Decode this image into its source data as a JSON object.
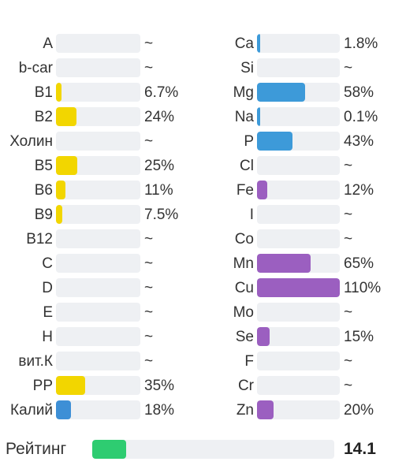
{
  "colors": {
    "track": "#eef0f3",
    "vitamin": "#f2d600",
    "potassium": "#3d8fd6",
    "mineral_blue": "#3d9ad9",
    "mineral_purple": "#9b5fc0",
    "rating": "#2ecc71"
  },
  "vitamins": [
    {
      "label": "A",
      "value_text": "~",
      "percent": 0,
      "color": "#f2d600"
    },
    {
      "label": "b-car",
      "value_text": "~",
      "percent": 0,
      "color": "#f2d600"
    },
    {
      "label": "B1",
      "value_text": "6.7%",
      "percent": 6.7,
      "color": "#f2d600"
    },
    {
      "label": "B2",
      "value_text": "24%",
      "percent": 24,
      "color": "#f2d600"
    },
    {
      "label": "Холин",
      "value_text": "~",
      "percent": 0,
      "color": "#f2d600"
    },
    {
      "label": "B5",
      "value_text": "25%",
      "percent": 25,
      "color": "#f2d600"
    },
    {
      "label": "B6",
      "value_text": "11%",
      "percent": 11,
      "color": "#f2d600"
    },
    {
      "label": "B9",
      "value_text": "7.5%",
      "percent": 7.5,
      "color": "#f2d600"
    },
    {
      "label": "B12",
      "value_text": "~",
      "percent": 0,
      "color": "#f2d600"
    },
    {
      "label": "C",
      "value_text": "~",
      "percent": 0,
      "color": "#f2d600"
    },
    {
      "label": "D",
      "value_text": "~",
      "percent": 0,
      "color": "#f2d600"
    },
    {
      "label": "E",
      "value_text": "~",
      "percent": 0,
      "color": "#f2d600"
    },
    {
      "label": "H",
      "value_text": "~",
      "percent": 0,
      "color": "#f2d600"
    },
    {
      "label": "вит.К",
      "value_text": "~",
      "percent": 0,
      "color": "#f2d600"
    },
    {
      "label": "PP",
      "value_text": "35%",
      "percent": 35,
      "color": "#f2d600"
    },
    {
      "label": "Калий",
      "value_text": "18%",
      "percent": 18,
      "color": "#3d8fd6"
    }
  ],
  "minerals": [
    {
      "label": "Ca",
      "value_text": "1.8%",
      "percent": 1.8,
      "color": "#3d9ad9"
    },
    {
      "label": "Si",
      "value_text": "~",
      "percent": 0,
      "color": "#3d9ad9"
    },
    {
      "label": "Mg",
      "value_text": "58%",
      "percent": 58,
      "color": "#3d9ad9"
    },
    {
      "label": "Na",
      "value_text": "0.1%",
      "percent": 0.1,
      "color": "#3d9ad9"
    },
    {
      "label": "P",
      "value_text": "43%",
      "percent": 43,
      "color": "#3d9ad9"
    },
    {
      "label": "Cl",
      "value_text": "~",
      "percent": 0,
      "color": "#3d9ad9"
    },
    {
      "label": "Fe",
      "value_text": "12%",
      "percent": 12,
      "color": "#9b5fc0"
    },
    {
      "label": "I",
      "value_text": "~",
      "percent": 0,
      "color": "#9b5fc0"
    },
    {
      "label": "Co",
      "value_text": "~",
      "percent": 0,
      "color": "#9b5fc0"
    },
    {
      "label": "Mn",
      "value_text": "65%",
      "percent": 65,
      "color": "#9b5fc0"
    },
    {
      "label": "Cu",
      "value_text": "110%",
      "percent": 110,
      "color": "#9b5fc0"
    },
    {
      "label": "Mo",
      "value_text": "~",
      "percent": 0,
      "color": "#9b5fc0"
    },
    {
      "label": "Se",
      "value_text": "15%",
      "percent": 15,
      "color": "#9b5fc0"
    },
    {
      "label": "F",
      "value_text": "~",
      "percent": 0,
      "color": "#9b5fc0"
    },
    {
      "label": "Cr",
      "value_text": "~",
      "percent": 0,
      "color": "#9b5fc0"
    },
    {
      "label": "Zn",
      "value_text": "20%",
      "percent": 20,
      "color": "#9b5fc0"
    }
  ],
  "rating": {
    "label": "Рейтинг",
    "value": "14.1",
    "fill_fraction": 0.14,
    "color": "#2ecc71"
  }
}
